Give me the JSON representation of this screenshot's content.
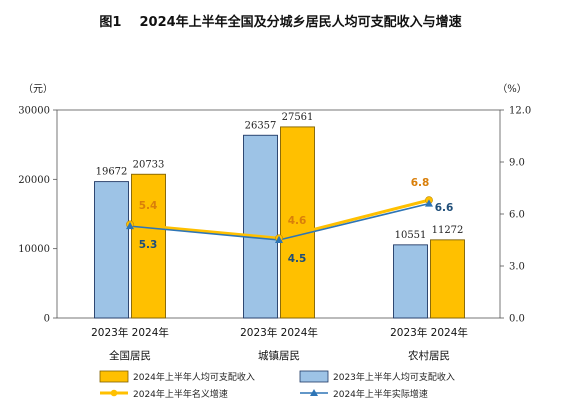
{
  "figure_title": "图1    2024年上半年全国及分城乡居民人均可支配收入与增速",
  "chart_data": {
    "type": "bar",
    "title": "图1    2024年上半年全国及分城乡居民人均可支配收入与增速",
    "left_unit": "（元）",
    "right_unit": "（%）",
    "ylim_left": [
      0,
      30000
    ],
    "ylim_right": [
      0,
      12
    ],
    "left_ticks": [
      "30000",
      "20000",
      "10000",
      "0"
    ],
    "right_ticks": [
      "12.0",
      "9.0",
      "6.0",
      "3.0",
      "0.0"
    ],
    "categories": [
      "全国居民",
      "城镇居民",
      "农村居民"
    ],
    "year_labels": [
      "2023年  2024年",
      "2023年  2024年",
      "2023年  2024年"
    ],
    "bar_series": [
      {
        "name": "2023年上半年人均可支配收入",
        "values": [
          19672,
          26357,
          10551
        ],
        "labels": [
          "19672",
          "26357",
          "10551"
        ]
      },
      {
        "name": "2024年上半年人均可支配收入",
        "values": [
          20733,
          27561,
          11272
        ],
        "labels": [
          "20733",
          "27561",
          "11272"
        ]
      }
    ],
    "line_series": [
      {
        "name": "2024年上半年名义增速",
        "values": [
          5.4,
          4.6,
          6.8
        ],
        "labels": [
          "5.4",
          "4.6",
          "6.8"
        ]
      },
      {
        "name": "2024年上半年实际增速",
        "values": [
          5.3,
          4.5,
          6.6
        ],
        "labels": [
          "5.3",
          "4.5",
          "6.6"
        ]
      }
    ],
    "colors": {
      "bar2023": "#9dc3e6",
      "bar2024": "#ffc000",
      "nominal": "#ffc000",
      "real": "#2e75b6",
      "label_orange": "#d97f0a",
      "label_blue": "#1f4e79"
    }
  }
}
